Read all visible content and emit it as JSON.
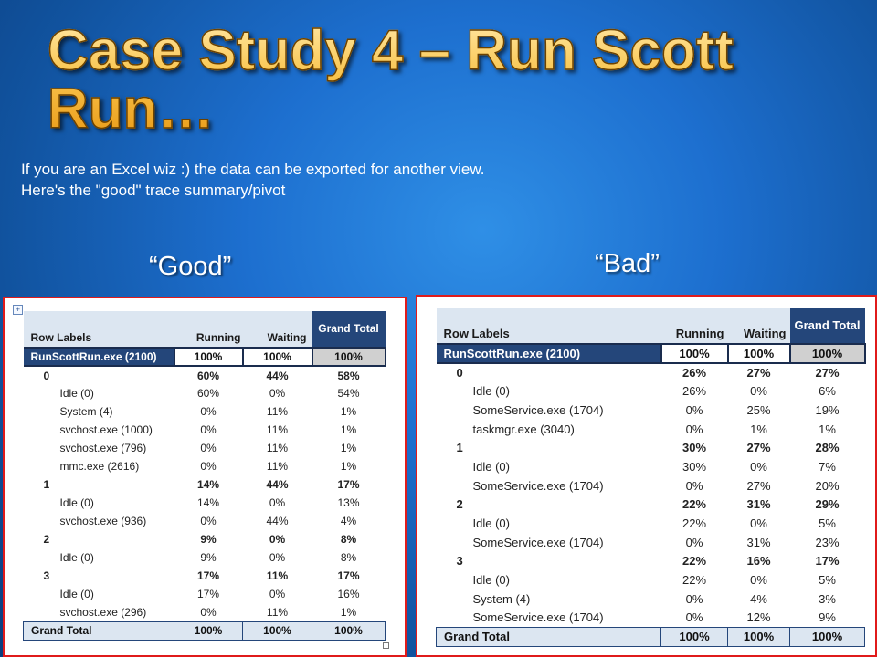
{
  "slide": {
    "title": "Case Study 4 – Run Scott Run…",
    "subtitle_line1": "If you are an Excel wiz :) the data can be exported for another view.",
    "subtitle_line2": "Here's the \"good\" trace summary/pivot"
  },
  "good": {
    "label": "“Good”",
    "headers": {
      "row_labels": "Row Labels",
      "running": "Running",
      "waiting": "Waiting",
      "grand_total": "Grand Total"
    },
    "rows": [
      {
        "kind": "exe",
        "label": "RunScottRun.exe (2100)",
        "running": "100%",
        "waiting": "100%",
        "total": "100%"
      },
      {
        "kind": "group",
        "label": "0",
        "running": "60%",
        "waiting": "44%",
        "total": "58%"
      },
      {
        "kind": "item",
        "label": "Idle (0)",
        "running": "60%",
        "waiting": "0%",
        "total": "54%"
      },
      {
        "kind": "item",
        "label": "System (4)",
        "running": "0%",
        "waiting": "11%",
        "total": "1%"
      },
      {
        "kind": "item",
        "label": "svchost.exe (1000)",
        "running": "0%",
        "waiting": "11%",
        "total": "1%"
      },
      {
        "kind": "item",
        "label": "svchost.exe (796)",
        "running": "0%",
        "waiting": "11%",
        "total": "1%"
      },
      {
        "kind": "item",
        "label": "mmc.exe (2616)",
        "running": "0%",
        "waiting": "11%",
        "total": "1%"
      },
      {
        "kind": "group",
        "label": "1",
        "running": "14%",
        "waiting": "44%",
        "total": "17%"
      },
      {
        "kind": "item",
        "label": "Idle (0)",
        "running": "14%",
        "waiting": "0%",
        "total": "13%"
      },
      {
        "kind": "item",
        "label": "svchost.exe (936)",
        "running": "0%",
        "waiting": "44%",
        "total": "4%"
      },
      {
        "kind": "group",
        "label": "2",
        "running": "9%",
        "waiting": "0%",
        "total": "8%"
      },
      {
        "kind": "item",
        "label": "Idle (0)",
        "running": "9%",
        "waiting": "0%",
        "total": "8%"
      },
      {
        "kind": "group",
        "label": "3",
        "running": "17%",
        "waiting": "11%",
        "total": "17%"
      },
      {
        "kind": "item",
        "label": "Idle (0)",
        "running": "17%",
        "waiting": "0%",
        "total": "16%"
      },
      {
        "kind": "item",
        "label": "svchost.exe (296)",
        "running": "0%",
        "waiting": "11%",
        "total": "1%"
      },
      {
        "kind": "grand",
        "label": "Grand Total",
        "running": "100%",
        "waiting": "100%",
        "total": "100%"
      }
    ]
  },
  "bad": {
    "label": "“Bad”",
    "headers": {
      "row_labels": "Row Labels",
      "running": "Running",
      "waiting": "Waiting",
      "grand_total": "Grand Total"
    },
    "rows": [
      {
        "kind": "exe",
        "label": "RunScottRun.exe (2100)",
        "running": "100%",
        "waiting": "100%",
        "total": "100%"
      },
      {
        "kind": "group",
        "label": "0",
        "running": "26%",
        "waiting": "27%",
        "total": "27%"
      },
      {
        "kind": "item",
        "label": "Idle (0)",
        "running": "26%",
        "waiting": "0%",
        "total": "6%"
      },
      {
        "kind": "item",
        "label": "SomeService.exe (1704)",
        "running": "0%",
        "waiting": "25%",
        "total": "19%"
      },
      {
        "kind": "item",
        "label": "taskmgr.exe (3040)",
        "running": "0%",
        "waiting": "1%",
        "total": "1%"
      },
      {
        "kind": "group",
        "label": "1",
        "running": "30%",
        "waiting": "27%",
        "total": "28%"
      },
      {
        "kind": "item",
        "label": "Idle (0)",
        "running": "30%",
        "waiting": "0%",
        "total": "7%"
      },
      {
        "kind": "item",
        "label": "SomeService.exe (1704)",
        "running": "0%",
        "waiting": "27%",
        "total": "20%"
      },
      {
        "kind": "group",
        "label": "2",
        "running": "22%",
        "waiting": "31%",
        "total": "29%"
      },
      {
        "kind": "item",
        "label": "Idle (0)",
        "running": "22%",
        "waiting": "0%",
        "total": "5%"
      },
      {
        "kind": "item",
        "label": "SomeService.exe (1704)",
        "running": "0%",
        "waiting": "31%",
        "total": "23%"
      },
      {
        "kind": "group",
        "label": "3",
        "running": "22%",
        "waiting": "16%",
        "total": "17%"
      },
      {
        "kind": "item",
        "label": "Idle (0)",
        "running": "22%",
        "waiting": "0%",
        "total": "5%"
      },
      {
        "kind": "item",
        "label": "System (4)",
        "running": "0%",
        "waiting": "4%",
        "total": "3%"
      },
      {
        "kind": "item",
        "label": "SomeService.exe (1704)",
        "running": "0%",
        "waiting": "12%",
        "total": "9%"
      },
      {
        "kind": "grand",
        "label": "Grand Total",
        "running": "100%",
        "waiting": "100%",
        "total": "100%"
      }
    ]
  }
}
